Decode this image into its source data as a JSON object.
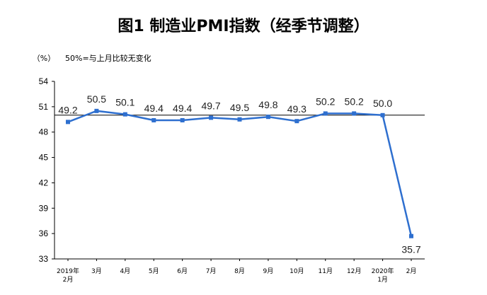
{
  "chart_data": {
    "type": "line",
    "title": "图1  制造业PMI指数（经季节调整）",
    "unit_label": "（%）",
    "note": "50%=与上月比较无变化",
    "categories": [
      "2019年2月",
      "3月",
      "4月",
      "5月",
      "6月",
      "7月",
      "8月",
      "9月",
      "10月",
      "11月",
      "12月",
      "2020年1月",
      "2月"
    ],
    "x_tick_labels": [
      [
        "2019年",
        "2月"
      ],
      [
        "3月"
      ],
      [
        "4月"
      ],
      [
        "5月"
      ],
      [
        "6月"
      ],
      [
        "7月"
      ],
      [
        "8月"
      ],
      [
        "9月"
      ],
      [
        "10月"
      ],
      [
        "11月"
      ],
      [
        "12月"
      ],
      [
        "2020年",
        "1月"
      ],
      [
        "2月"
      ]
    ],
    "series": [
      {
        "values": [
          49.2,
          50.5,
          50.1,
          49.4,
          49.4,
          49.7,
          49.5,
          49.8,
          49.3,
          50.2,
          50.2,
          50.0,
          35.7
        ]
      }
    ],
    "data_labels": [
      "49.2",
      "50.5",
      "50.1",
      "49.4",
      "49.4",
      "49.7",
      "49.5",
      "49.8",
      "49.3",
      "50.2",
      "50.2",
      "50.0",
      "35.7"
    ],
    "y_ticks": [
      33,
      36,
      39,
      42,
      45,
      48,
      51,
      54
    ],
    "ylim": [
      33,
      54
    ],
    "reference_line": 50,
    "grid": false,
    "colors": {
      "line": "#2e6fcf",
      "marker": "#2e6fcf",
      "axis": "#000000"
    }
  }
}
